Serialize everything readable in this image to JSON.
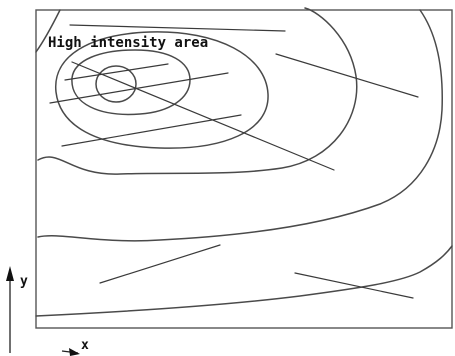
{
  "diagram": {
    "annotation": "High intensity area",
    "y_axis_label": "y",
    "x_axis_label": "x"
  }
}
